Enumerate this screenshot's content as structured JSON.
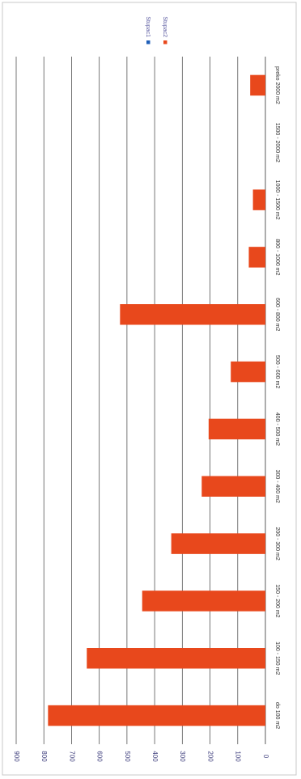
{
  "chart_data": {
    "type": "bar",
    "orientation": "horizontal",
    "rotation": "rotated 90 degrees clockwise",
    "categories": [
      "do 100 m2",
      "100 - 150 m2",
      "150 - 200 m2",
      "200 - 300 m2",
      "300 - 400 m2",
      "400 - 500 m2",
      "500 - 600 m2",
      "600 - 800 m2",
      "800 - 1000 m2",
      "1000 - 1500 m2",
      "1500 - 2000 m2",
      "preko 2000 m2"
    ],
    "series": [
      {
        "name": "Stupac1",
        "color": "#1f5fb8",
        "values": [
          0,
          0,
          0,
          0,
          0,
          0,
          0,
          0,
          0,
          0,
          0,
          0
        ]
      },
      {
        "name": "Stupac2",
        "color": "#e8481c",
        "values": [
          785,
          645,
          445,
          340,
          230,
          205,
          125,
          525,
          60,
          45,
          0,
          55
        ]
      }
    ],
    "value_axis": {
      "min": 0,
      "max": 900,
      "ticks": [
        "0",
        "100",
        "200",
        "300",
        "400",
        "500",
        "600",
        "700",
        "800",
        "900"
      ]
    },
    "grid": true,
    "legend": "top-right"
  }
}
